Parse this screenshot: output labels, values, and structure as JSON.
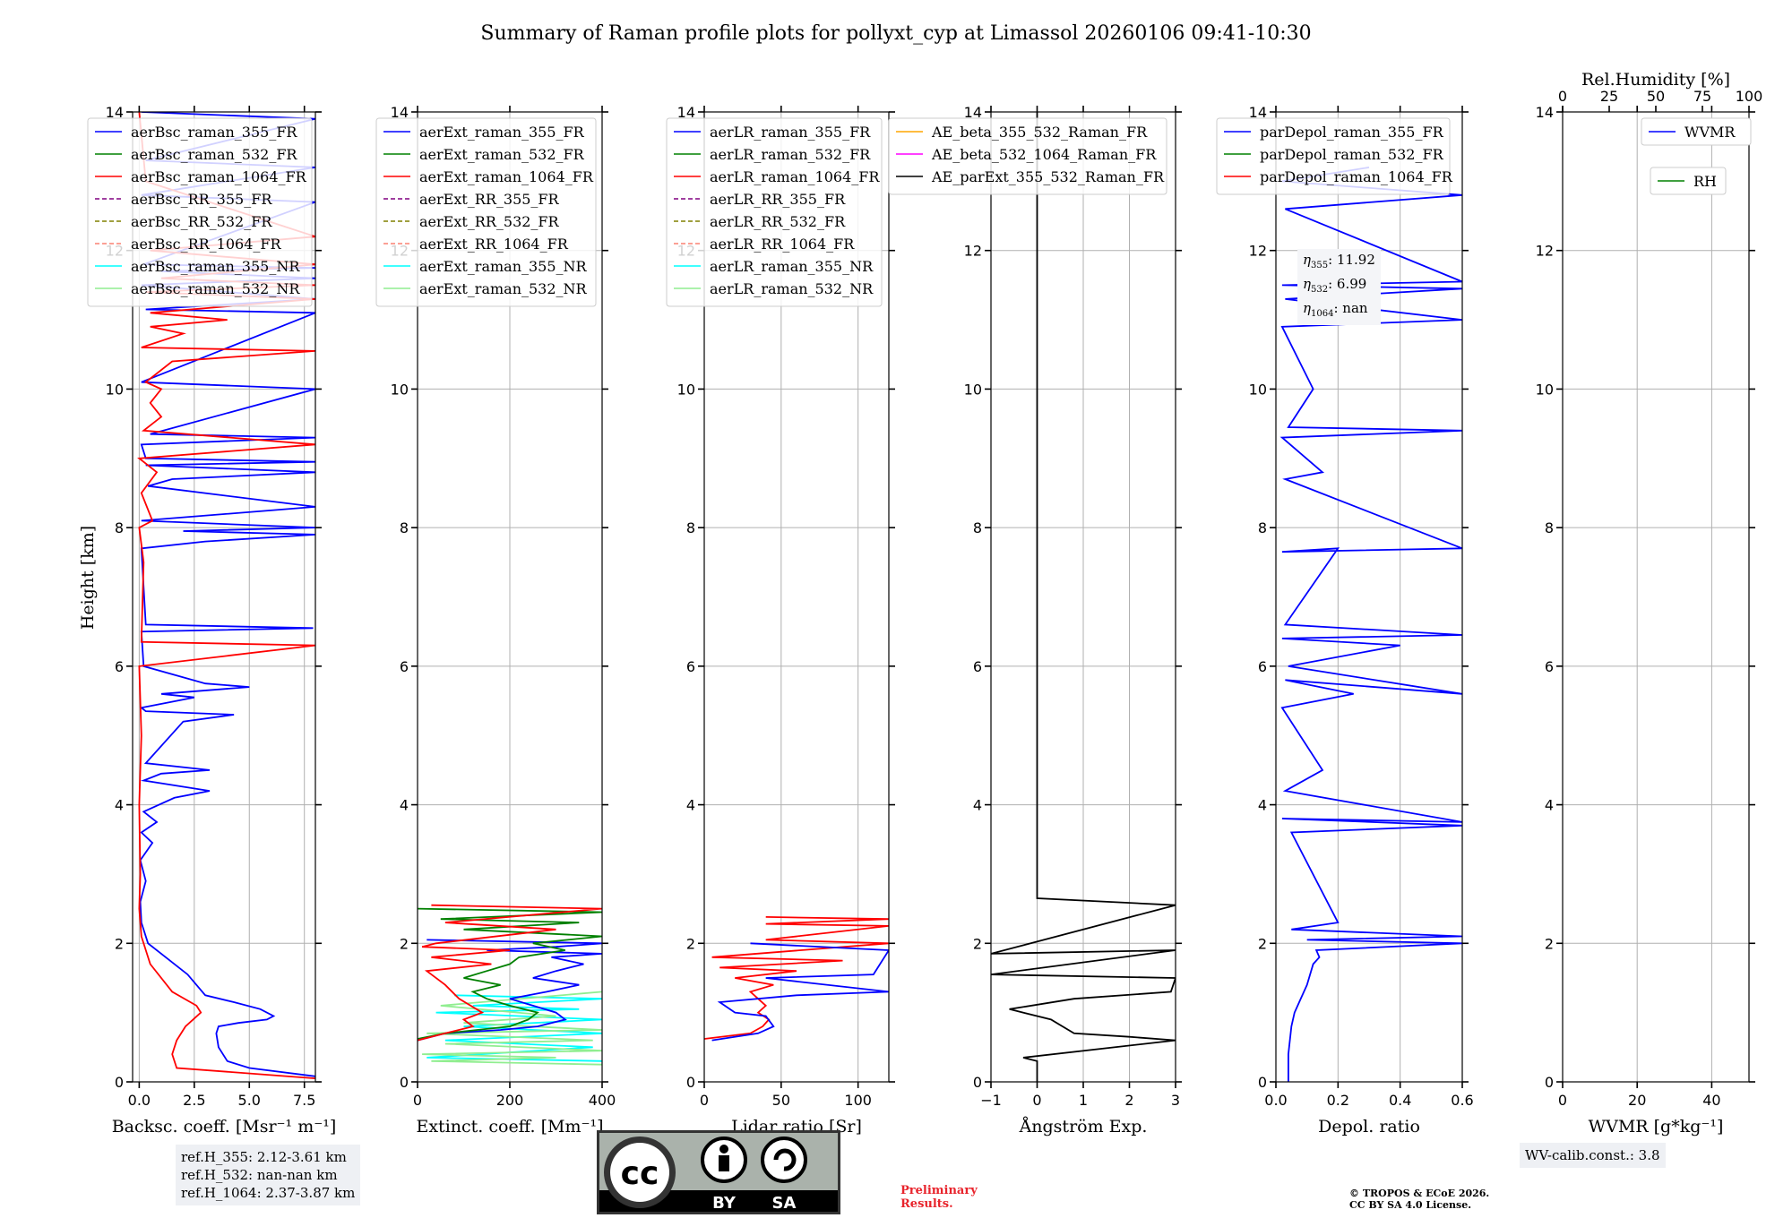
{
  "title": "Summary of Raman profile plots for pollyxt_cyp at Limassol 20260106 09:41-10:30",
  "ylabel": "Height [km]",
  "colors": {
    "c355": "#0000ff",
    "c532": "#008000",
    "c1064": "#ff0000",
    "purple": "#800080",
    "olive": "#808000",
    "salmon": "#fa8072",
    "cyan": "#00ffff",
    "lightgreen": "#90ee90",
    "orange": "#ffa500",
    "magenta": "#ff00ff",
    "black": "#000000"
  },
  "chart_data": [
    {
      "type": "line",
      "name": "backscatter",
      "xlabel": "Backsc. coeff. [Msr⁻¹ m⁻¹]",
      "xlim": [
        -0.3,
        8.0
      ],
      "xticks": [
        0.0,
        2.5,
        5.0,
        7.5
      ],
      "xticklabels": [
        "0.0",
        "2.5",
        "5.0",
        "7.5"
      ],
      "ylim": [
        0,
        14
      ],
      "yticks": [
        0,
        2,
        4,
        6,
        8,
        10,
        12,
        14
      ],
      "legend": [
        "aerBsc_raman_355_FR",
        "aerBsc_raman_532_FR",
        "aerBsc_raman_1064_FR",
        "aerBsc_RR_355_FR",
        "aerBsc_RR_532_FR",
        "aerBsc_RR_1064_FR",
        "aerBsc_raman_355_NR",
        "aerBsc_raman_532_NR"
      ],
      "series": [
        {
          "name": "aerBsc_raman_355_FR",
          "x": [
            8.0,
            5.0,
            4.0,
            3.6,
            3.5,
            3.6,
            4.5,
            5.8,
            6.1,
            5.5,
            4.3,
            3.0,
            2.2,
            1.2,
            0.4,
            0.1,
            0.05,
            0.3,
            0.05,
            0.6,
            0.1,
            0.8,
            0.2,
            1.6,
            3.2,
            1.2,
            0.2,
            1.0,
            3.2,
            0.3,
            2.0,
            4.3,
            0.3,
            0.1,
            2.5,
            1.0,
            5.0,
            3.0,
            0.2,
            0.1,
            7.9,
            0.3,
            0.1,
            3.0,
            8.0,
            2.0,
            8.0,
            0.1,
            8.0,
            0.4,
            1.5,
            8.0,
            0.3,
            8.0,
            0.3,
            0.1,
            8.0,
            0.5,
            8.0,
            0.1,
            8.0,
            0.3,
            8.0,
            0.1,
            8.0,
            1.0,
            8.0,
            0.2,
            8.0,
            0.1,
            8.0,
            0.3,
            8.0,
            0.1
          ],
          "y": [
            0.08,
            0.2,
            0.3,
            0.5,
            0.7,
            0.8,
            0.85,
            0.9,
            0.95,
            1.05,
            1.15,
            1.25,
            1.55,
            1.8,
            2.0,
            2.3,
            2.6,
            2.9,
            3.2,
            3.45,
            3.6,
            3.75,
            3.9,
            4.1,
            4.2,
            4.3,
            4.35,
            4.45,
            4.5,
            4.6,
            5.2,
            5.3,
            5.35,
            5.4,
            5.55,
            5.6,
            5.7,
            5.75,
            6.0,
            6.5,
            6.55,
            6.6,
            7.7,
            7.8,
            7.9,
            7.95,
            8.0,
            8.1,
            8.3,
            8.6,
            8.7,
            8.8,
            8.9,
            8.95,
            9.0,
            9.2,
            9.3,
            9.35,
            10.0,
            10.1,
            11.1,
            11.15,
            11.3,
            11.5,
            11.6,
            11.7,
            11.75,
            11.8,
            12.7,
            12.8,
            13.2,
            13.3,
            13.9,
            14.0
          ],
          "color": "#0000ff"
        },
        {
          "name": "aerBsc_raman_1064_FR",
          "x": [
            8.0,
            1.7,
            1.5,
            1.7,
            2.1,
            2.8,
            2.6,
            1.5,
            0.5,
            0.1,
            0.0,
            0.05,
            0.0,
            0.1,
            0.0,
            8.0,
            0.1,
            0.2,
            0.0,
            0.6,
            0.1,
            0.8,
            0.0,
            8.0,
            0.2,
            1.0,
            0.5,
            1.0,
            0.3,
            1.5,
            8.0,
            0.1,
            2.0,
            0.5,
            4.0,
            0.5,
            8.0,
            0.3,
            8.0,
            1.0,
            8.0,
            0.5,
            8.0,
            0.3,
            0.0
          ],
          "y": [
            0.05,
            0.2,
            0.4,
            0.6,
            0.8,
            1.0,
            1.1,
            1.3,
            1.7,
            2.1,
            2.5,
            3.0,
            4.0,
            5.0,
            6.0,
            6.3,
            6.35,
            7.5,
            8.0,
            8.1,
            8.5,
            8.8,
            9.0,
            9.2,
            9.4,
            9.6,
            9.8,
            10.0,
            10.1,
            10.4,
            10.55,
            10.6,
            10.8,
            10.9,
            11.0,
            11.1,
            11.3,
            11.4,
            11.5,
            11.6,
            11.8,
            12.0,
            12.2,
            13.0,
            14.0
          ],
          "color": "#ff0000"
        }
      ]
    },
    {
      "type": "line",
      "name": "extinction",
      "xlabel": "Extinct. coeff. [Mm⁻¹]",
      "xlim": [
        0,
        400
      ],
      "xticks": [
        0,
        200,
        400
      ],
      "xticklabels": [
        "0",
        "200",
        "400"
      ],
      "ylim": [
        0,
        14
      ],
      "yticks": [
        0,
        2,
        4,
        6,
        8,
        10,
        12,
        14
      ],
      "legend": [
        "aerExt_raman_355_FR",
        "aerExt_raman_532_FR",
        "aerExt_raman_1064_FR",
        "aerExt_RR_355_FR",
        "aerExt_RR_532_FR",
        "aerExt_RR_1064_FR",
        "aerExt_raman_355_NR",
        "aerExt_raman_532_NR"
      ],
      "series": [
        {
          "name": "aerExt_raman_355_NR",
          "x": [
            400,
            20,
            380,
            60,
            400,
            100,
            400,
            40,
            350,
            120,
            400,
            80
          ],
          "y": [
            0.3,
            0.35,
            0.5,
            0.6,
            0.7,
            0.8,
            0.9,
            1.0,
            1.05,
            1.1,
            1.2,
            1.25
          ],
          "color": "#00ffff"
        },
        {
          "name": "aerExt_raman_532_NR",
          "x": [
            400,
            30,
            300,
            10,
            400,
            60,
            380,
            20,
            400,
            100,
            300,
            50,
            400
          ],
          "y": [
            0.25,
            0.3,
            0.35,
            0.4,
            0.45,
            0.55,
            0.6,
            0.7,
            0.75,
            0.85,
            0.95,
            1.1,
            1.3
          ],
          "color": "#90ee90"
        },
        {
          "name": "aerExt_raman_355_FR",
          "x": [
            0,
            60,
            180,
            260,
            320,
            300,
            250,
            200,
            280,
            350,
            300,
            250,
            300,
            360,
            290,
            400,
            150,
            300,
            400,
            20
          ],
          "y": [
            0.6,
            0.7,
            0.75,
            0.8,
            0.9,
            1.0,
            1.1,
            1.2,
            1.3,
            1.4,
            1.45,
            1.5,
            1.6,
            1.7,
            1.8,
            1.85,
            1.9,
            1.95,
            2.0,
            2.05
          ],
          "color": "#0000ff"
        },
        {
          "name": "aerExt_raman_532_FR",
          "x": [
            0,
            60,
            200,
            240,
            260,
            200,
            150,
            120,
            180,
            100,
            150,
            200,
            220,
            320,
            250,
            400,
            100,
            350,
            50,
            400,
            0
          ],
          "y": [
            0.62,
            0.7,
            0.8,
            0.9,
            1.0,
            1.1,
            1.2,
            1.3,
            1.4,
            1.5,
            1.6,
            1.7,
            1.8,
            1.9,
            2.0,
            2.1,
            2.2,
            2.3,
            2.35,
            2.45,
            2.5
          ],
          "color": "#008000"
        },
        {
          "name": "aerExt_raman_1064_FR",
          "x": [
            0,
            60,
            120,
            100,
            140,
            90,
            60,
            20,
            160,
            30,
            200,
            10,
            40,
            300,
            60,
            400,
            30
          ],
          "y": [
            0.6,
            0.7,
            0.8,
            0.9,
            1.0,
            1.2,
            1.4,
            1.6,
            1.7,
            1.8,
            1.9,
            1.95,
            2.0,
            2.2,
            2.3,
            2.5,
            2.55
          ],
          "color": "#ff0000"
        }
      ]
    },
    {
      "type": "line",
      "name": "lidar_ratio",
      "xlabel": "Lidar ratio [Sr]",
      "xlim": [
        0,
        120
      ],
      "xticks": [
        0,
        50,
        100
      ],
      "xticklabels": [
        "0",
        "50",
        "100"
      ],
      "ylim": [
        0,
        14
      ],
      "yticks": [
        0,
        2,
        4,
        6,
        8,
        10,
        12,
        14
      ],
      "legend": [
        "aerLR_raman_355_FR",
        "aerLR_raman_532_FR",
        "aerLR_raman_1064_FR",
        "aerLR_RR_355_FR",
        "aerLR_RR_532_FR",
        "aerLR_RR_1064_FR",
        "aerLR_raman_355_NR",
        "aerLR_raman_532_NR"
      ],
      "series": [
        {
          "name": "aerLR_raman_1064_FR",
          "x": [
            0,
            30,
            38,
            42,
            35,
            40,
            30,
            45,
            20,
            60,
            10,
            90,
            5,
            120,
            40,
            120,
            40,
            120,
            40
          ],
          "y": [
            0.62,
            0.7,
            0.8,
            0.9,
            1.0,
            1.1,
            1.3,
            1.4,
            1.5,
            1.6,
            1.65,
            1.75,
            1.8,
            2.0,
            2.05,
            2.25,
            2.28,
            2.35,
            2.38
          ],
          "color": "#ff0000"
        },
        {
          "name": "aerLR_raman_355_FR",
          "x": [
            5,
            35,
            45,
            40,
            20,
            10,
            60,
            120,
            40,
            110,
            120,
            30
          ],
          "y": [
            0.6,
            0.7,
            0.8,
            0.95,
            1.0,
            1.15,
            1.25,
            1.3,
            1.5,
            1.55,
            1.9,
            2.0
          ],
          "color": "#0000ff"
        }
      ]
    },
    {
      "type": "line",
      "name": "angstrom",
      "xlabel": "Ångström Exp.",
      "xlim": [
        -1,
        3
      ],
      "xticks": [
        -1,
        0,
        1,
        2,
        3
      ],
      "xticklabels": [
        "−1",
        "0",
        "1",
        "2",
        "3"
      ],
      "ylim": [
        0,
        14
      ],
      "yticks": [
        0,
        2,
        4,
        6,
        8,
        10,
        12,
        14
      ],
      "legend": [
        "AE_beta_355_532_Raman_FR",
        "AE_beta_532_1064_Raman_FR",
        "AE_parExt_355_532_Raman_FR"
      ],
      "series": [
        {
          "name": "AE_parExt_355_532_Raman_FR",
          "x": [
            0.0,
            0.0,
            -0.3,
            3.0,
            2.0,
            0.8,
            0.3,
            -0.6,
            0.8,
            2.9,
            3.0,
            -1.0,
            3.0,
            -1.0,
            3.0,
            0.0,
            0.0
          ],
          "y": [
            0.0,
            0.3,
            0.35,
            0.6,
            0.65,
            0.7,
            0.9,
            1.05,
            1.2,
            1.3,
            1.5,
            1.55,
            1.9,
            1.85,
            2.55,
            2.65,
            14.0
          ],
          "color": "#000000"
        }
      ]
    },
    {
      "type": "line",
      "name": "depolarization",
      "xlabel": "Depol. ratio",
      "xlim": [
        0,
        0.6
      ],
      "xticks": [
        0.0,
        0.2,
        0.4,
        0.6
      ],
      "xticklabels": [
        "0.0",
        "0.2",
        "0.4",
        "0.6"
      ],
      "ylim": [
        0,
        14
      ],
      "yticks": [
        0,
        2,
        4,
        6,
        8,
        10,
        12,
        14
      ],
      "legend": [
        "parDepol_raman_355_FR",
        "parDepol_raman_532_FR",
        "parDepol_raman_1064_FR"
      ],
      "annotations": [
        "η355: 11.92",
        "η532: 6.99",
        "η1064: nan"
      ],
      "series": [
        {
          "name": "parDepol_raman_355_FR",
          "x": [
            0.04,
            0.04,
            0.05,
            0.06,
            0.08,
            0.1,
            0.12,
            0.14,
            0.13,
            0.6,
            0.1,
            0.6,
            0.05,
            0.2,
            0.05,
            0.6,
            0.02,
            0.6,
            0.03,
            0.15,
            0.02,
            0.25,
            0.03,
            0.6,
            0.04,
            0.4,
            0.02,
            0.6,
            0.03,
            0.2,
            0.02,
            0.6,
            0.03,
            0.15,
            0.02,
            0.6,
            0.04,
            0.12,
            0.02,
            0.6,
            0.03,
            0.6,
            0.02,
            0.6,
            0.03,
            0.6,
            0.02,
            0.3
          ],
          "y": [
            0.0,
            0.4,
            0.8,
            1.0,
            1.2,
            1.4,
            1.7,
            1.8,
            1.9,
            2.0,
            2.05,
            2.1,
            2.2,
            2.3,
            3.6,
            3.7,
            3.8,
            3.75,
            4.2,
            4.5,
            5.4,
            5.6,
            5.8,
            5.6,
            6.0,
            6.3,
            6.4,
            6.45,
            6.6,
            7.7,
            7.65,
            7.7,
            8.7,
            8.8,
            9.3,
            9.4,
            9.45,
            10.0,
            10.9,
            11.0,
            11.3,
            11.45,
            11.5,
            11.55,
            12.6,
            12.8,
            13.0,
            13.2
          ],
          "color": "#0000ff"
        }
      ]
    },
    {
      "type": "line",
      "name": "water_vapor",
      "xlabel": "WVMR [g*kg⁻¹]",
      "top_xlabel": "Rel.Humidity [%]",
      "xlim": [
        0,
        50
      ],
      "xticks": [
        0,
        20,
        40
      ],
      "xticklabels": [
        "0",
        "20",
        "40"
      ],
      "top_xticklabels": [
        "0",
        "25",
        "50",
        "75",
        "100"
      ],
      "ylim": [
        0,
        14
      ],
      "yticks": [
        0,
        2,
        4,
        6,
        8,
        10,
        12,
        14
      ],
      "legend": [
        "WVMR",
        "RH"
      ],
      "annotations": [
        "WV-calib.const.: 3.8"
      ],
      "series": []
    }
  ],
  "reference_heights": [
    "ref.H_355: 2.12-3.61 km",
    "ref.H_532: nan-nan km",
    "ref.H_1064: 2.37-3.87 km"
  ],
  "wv_calib": "WV-calib.const.: 3.8",
  "eta": {
    "e355": "11.92",
    "e532": "6.99",
    "e1064": "nan"
  },
  "license_badge": {
    "cc": "cc",
    "by": "BY",
    "sa": "SA"
  },
  "preliminary": [
    "Preliminary",
    "Results."
  ],
  "copyright": [
    "© TROPOS & ECoE 2026.",
    "CC BY SA 4.0 License."
  ]
}
